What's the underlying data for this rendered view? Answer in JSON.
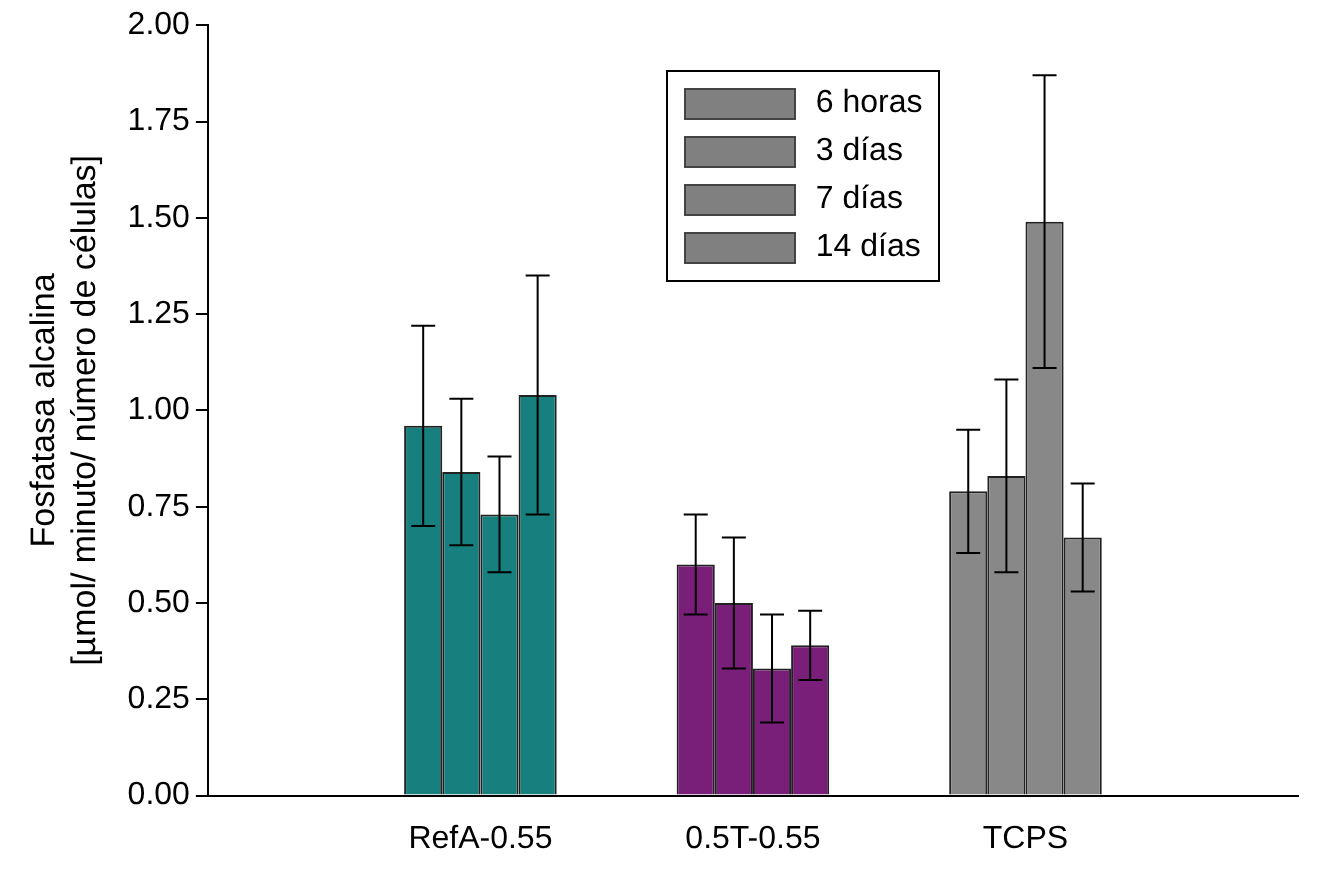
{
  "chart_data": {
    "type": "bar",
    "ylabel": "Fosfatasa alcalina\n[µmol/ minuto/ número de células]",
    "categories": [
      null,
      "RefA-0.55",
      "0.5T-0.55",
      "TCPS",
      null
    ],
    "series": [
      {
        "name": "6 horas",
        "color": "#808080",
        "colors": [
          null,
          "#17807e",
          "#7a1f79",
          "#888888",
          null
        ],
        "values": [
          null,
          0.96,
          0.6,
          0.79,
          null
        ],
        "errors": [
          null,
          0.26,
          0.13,
          0.16,
          null
        ]
      },
      {
        "name": "3 días",
        "color": "#808080",
        "colors": [
          null,
          "#17807e",
          "#7a1f79",
          "#888888",
          null
        ],
        "values": [
          null,
          0.84,
          0.5,
          0.83,
          null
        ],
        "errors": [
          null,
          0.19,
          0.17,
          0.25,
          null
        ]
      },
      {
        "name": "7 días",
        "color": "#808080",
        "colors": [
          null,
          "#17807e",
          "#7a1f79",
          "#888888",
          null
        ],
        "values": [
          null,
          0.73,
          0.33,
          1.49,
          null
        ],
        "errors": [
          null,
          0.15,
          0.14,
          0.38,
          null
        ]
      },
      {
        "name": "14 días",
        "color": "#808080",
        "colors": [
          null,
          "#17807e",
          "#7a1f79",
          "#888888",
          null
        ],
        "values": [
          null,
          1.04,
          0.39,
          0.67,
          null
        ],
        "errors": [
          null,
          0.31,
          0.09,
          0.14,
          null
        ]
      }
    ],
    "ylim": [
      0,
      2
    ],
    "yticks": [
      {
        "value": 0,
        "label": "0.00"
      },
      {
        "value": 0.25,
        "label": "0.25"
      },
      {
        "value": 0.5,
        "label": "0.50"
      },
      {
        "value": 0.75,
        "label": "0.75"
      },
      {
        "value": 1,
        "label": "1.00"
      },
      {
        "value": 1.25,
        "label": "1.25"
      },
      {
        "value": 1.5,
        "label": "1.50"
      },
      {
        "value": 1.75,
        "label": "1.75"
      },
      {
        "value": 2,
        "label": "2.00"
      }
    ],
    "grid": false,
    "legend": "top right"
  }
}
